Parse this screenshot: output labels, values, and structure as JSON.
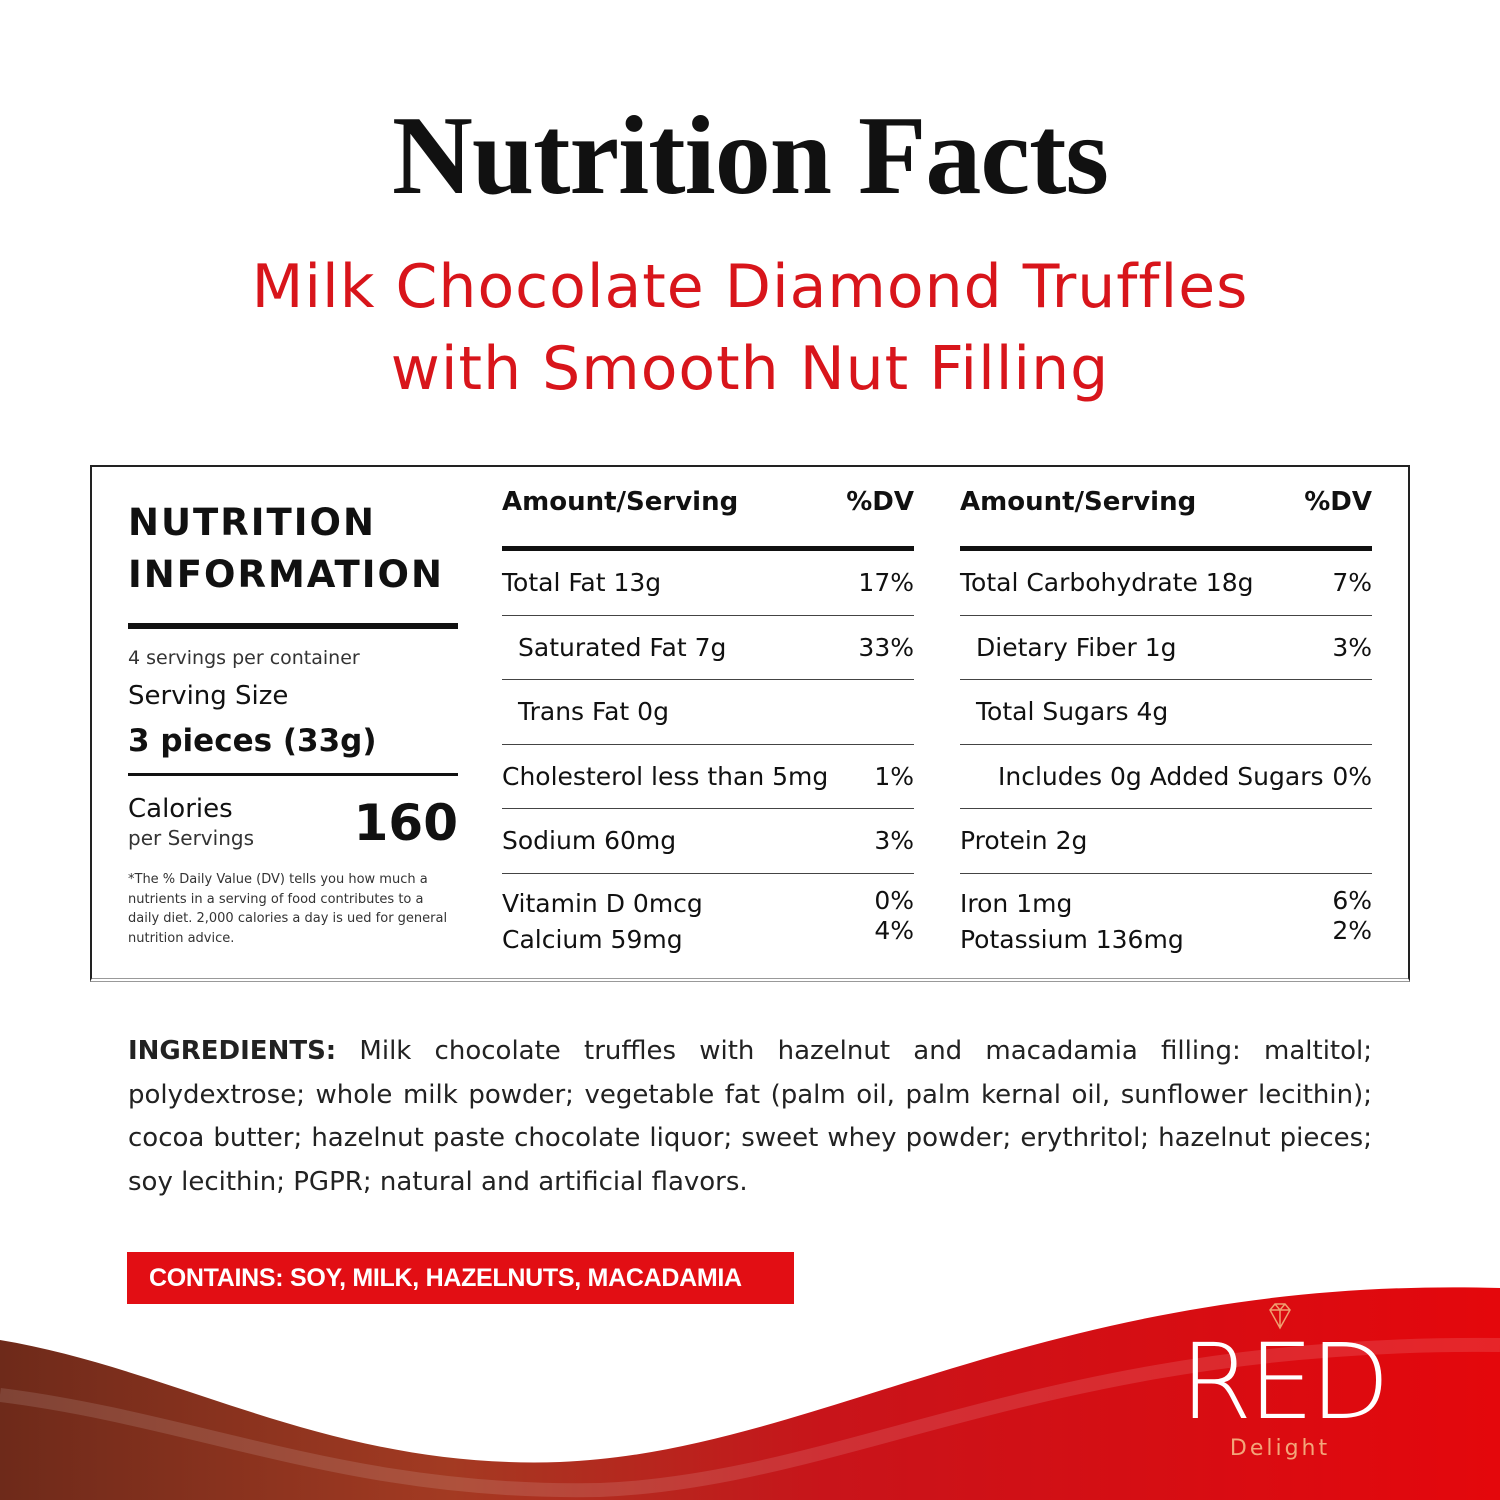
{
  "title": "Nutrition Facts",
  "subtitle_line1": "Milk Chocolate Diamond Truffles",
  "subtitle_line2": "with Smooth Nut Filling",
  "panel": {
    "heading_line1": "NUTRITION",
    "heading_line2": "INFORMATION",
    "servings_per_container": "4 servings per container",
    "serving_size_label": "Serving Size",
    "serving_size_value": "3 pieces (33g)",
    "calories_label": "Calories",
    "calories_sub": "per Servings",
    "calories_value": "160",
    "footnote": "*The % Daily Value (DV) tells you how much a nutrients in a serving of food contributes to a daily diet. 2,000 calories a day is ued for general nutrition advice."
  },
  "columns": [
    {
      "header_amount": "Amount/Serving",
      "header_dv": "%DV",
      "rows": [
        {
          "label": "Total Fat 13g",
          "dv": "17%"
        },
        {
          "label": "Saturated Fat 7g",
          "dv": "33%"
        },
        {
          "label": "Trans Fat 0g",
          "dv": ""
        },
        {
          "label": "Cholesterol less than 5mg",
          "dv": "1%"
        },
        {
          "label": "Sodium 60mg",
          "dv": "3%"
        },
        {
          "label": "Vitamin D 0mcg",
          "dv": "0%"
        },
        {
          "label": "Calcium 59mg",
          "dv": "4%"
        }
      ]
    },
    {
      "header_amount": "Amount/Serving",
      "header_dv": "%DV",
      "rows": [
        {
          "label": "Total Carbohydrate 18g",
          "dv": "7%"
        },
        {
          "label": "Dietary Fiber 1g",
          "dv": "3%"
        },
        {
          "label": "Total Sugars 4g",
          "dv": ""
        },
        {
          "label": "Includes 0g Added Sugars",
          "dv": "0%"
        },
        {
          "label": "Protein 2g",
          "dv": ""
        },
        {
          "label": "Iron 1mg",
          "dv": "6%"
        },
        {
          "label": "Potassium 136mg",
          "dv": "2%"
        }
      ]
    }
  ],
  "ingredients_label": "INGREDIENTS:",
  "ingredients_text": " Milk chocolate truffles with hazelnut and macadamia filling: maltitol; polydextrose; whole milk powder; vegetable fat (palm oil, palm kernal oil, sunflower lecithin); cocoa butter; hazelnut paste chocolate liquor; sweet whey powder; erythritol; hazelnut pieces; soy lecithin; PGPR; natural and artificial flavors.",
  "contains": "CONTAINS: SOY, MILK, HAZELNUTS, MACADAMIA",
  "logo": {
    "brand": "RED",
    "tagline": "Delight",
    "icon": "diamond-icon"
  },
  "colors": {
    "accent": "#e20e14",
    "chocolate": "#8b3a24"
  }
}
